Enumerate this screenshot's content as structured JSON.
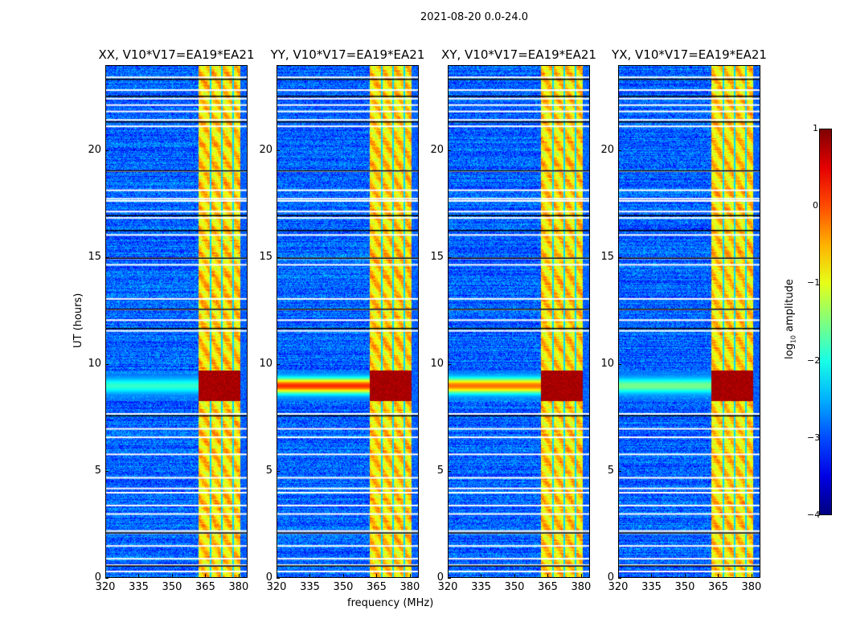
{
  "chart_data": {
    "type": "heatmap",
    "title": "2021-08-20 0.0-24.0",
    "xlabel": "frequency (MHz)",
    "ylabel": "UT (hours)",
    "xlim": [
      320,
      384
    ],
    "ylim": [
      0,
      24
    ],
    "xticks": [
      "320",
      "335",
      "350",
      "365",
      "380"
    ],
    "xtick_values": [
      320,
      335,
      350,
      365,
      380
    ],
    "yticks": [
      "0",
      "5",
      "10",
      "15",
      "20"
    ],
    "ytick_values": [
      0,
      5,
      10,
      15,
      20
    ],
    "panels": [
      {
        "title": "XX, V10*V17=EA19*EA21",
        "rfi_outband": 0.3
      },
      {
        "title": "YY, V10*V17=EA19*EA21",
        "rfi_outband": 0.9
      },
      {
        "title": "XY, V10*V17=EA19*EA21",
        "rfi_outband": 0.8
      },
      {
        "title": "YX, V10*V17=EA19*EA21",
        "rfi_outband": 0.4
      }
    ],
    "colorbar": {
      "label": "log10 amplitude",
      "label_main": "log",
      "label_sub": "10",
      "label_rest": " amplitude",
      "range": [
        -4,
        1
      ],
      "ticks": [
        "1",
        "0",
        "−1",
        "−2",
        "−3",
        "−4"
      ],
      "tick_values": [
        1,
        0,
        -1,
        -2,
        -3,
        -4
      ],
      "colormap": "jet"
    },
    "features": {
      "background_level": -2.9,
      "band_mhz": [
        362,
        381
      ],
      "band_level": -0.7,
      "band_gaps_mhz": [
        367.5,
        372.5,
        377.5
      ],
      "rfi_ut": [
        8.3,
        9.7
      ],
      "rfi_level": 0.8,
      "blank_ut": [
        0.3,
        0.6,
        0.9,
        1.5,
        2.1,
        2.2,
        3.0,
        3.4,
        4.0,
        4.2,
        4.7,
        5.8,
        6.6,
        7.0,
        7.7,
        11.6,
        12.1,
        12.6,
        13.1,
        14.7,
        15.0,
        16.1,
        16.9,
        17.2,
        17.7,
        17.8,
        18.2,
        19.1,
        21.2,
        21.5,
        21.9,
        22.2,
        22.5,
        22.9,
        23.5
      ],
      "black_ut": [
        0.55,
        2.1,
        7.6,
        11.7,
        12.6,
        15.0,
        16.3,
        17.0,
        19.1,
        21.4,
        22.6,
        23.4
      ]
    }
  }
}
